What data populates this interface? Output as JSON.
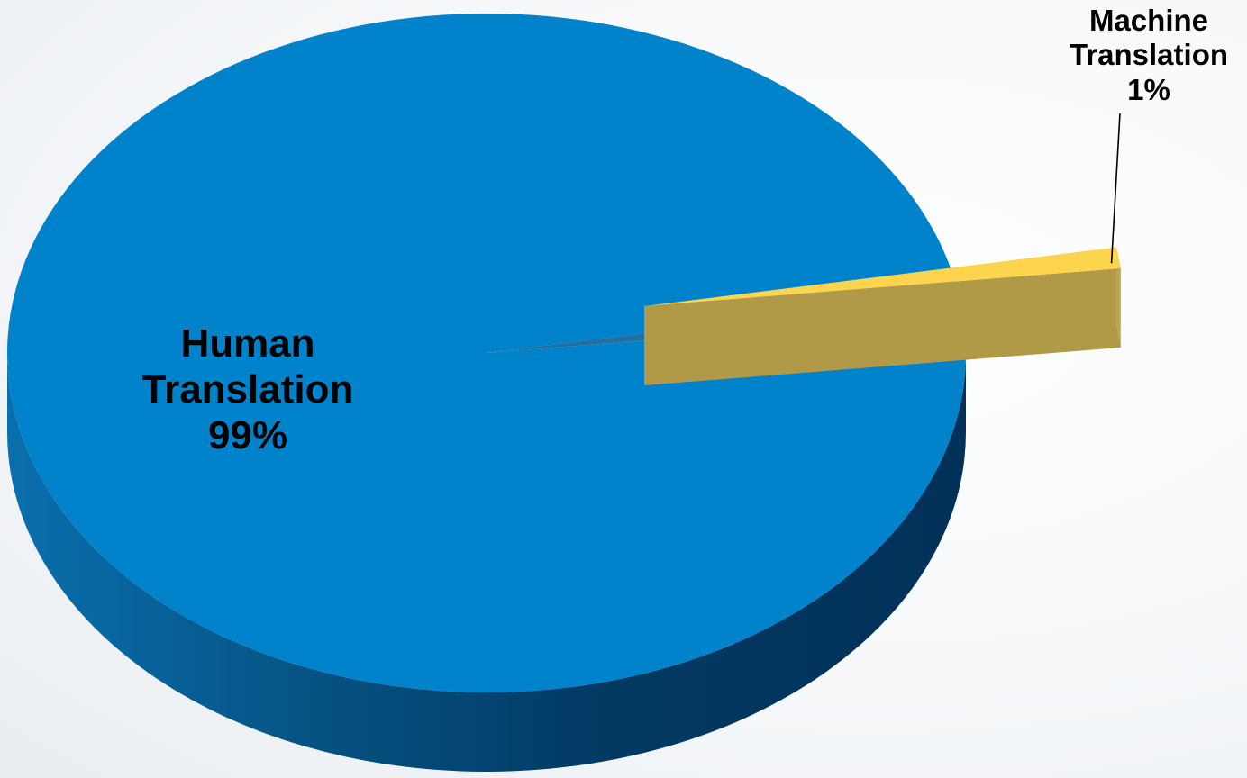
{
  "chart_data": {
    "type": "pie",
    "style": "3d-exploded",
    "slices": [
      {
        "label_line1": "Human",
        "label_line2": "Translation",
        "value": 99,
        "value_label": "99%",
        "color": "#0183cc",
        "side_color_light": "#0a6fae",
        "side_color_dark": "#02355e"
      },
      {
        "label_line1": "Machine",
        "label_line2": "Translation",
        "value": 1,
        "value_label": "1%",
        "color": "#fcd44d",
        "side_color_light": "#bfa64c",
        "side_color_dark": "#b09a48",
        "exploded": true
      }
    ]
  }
}
